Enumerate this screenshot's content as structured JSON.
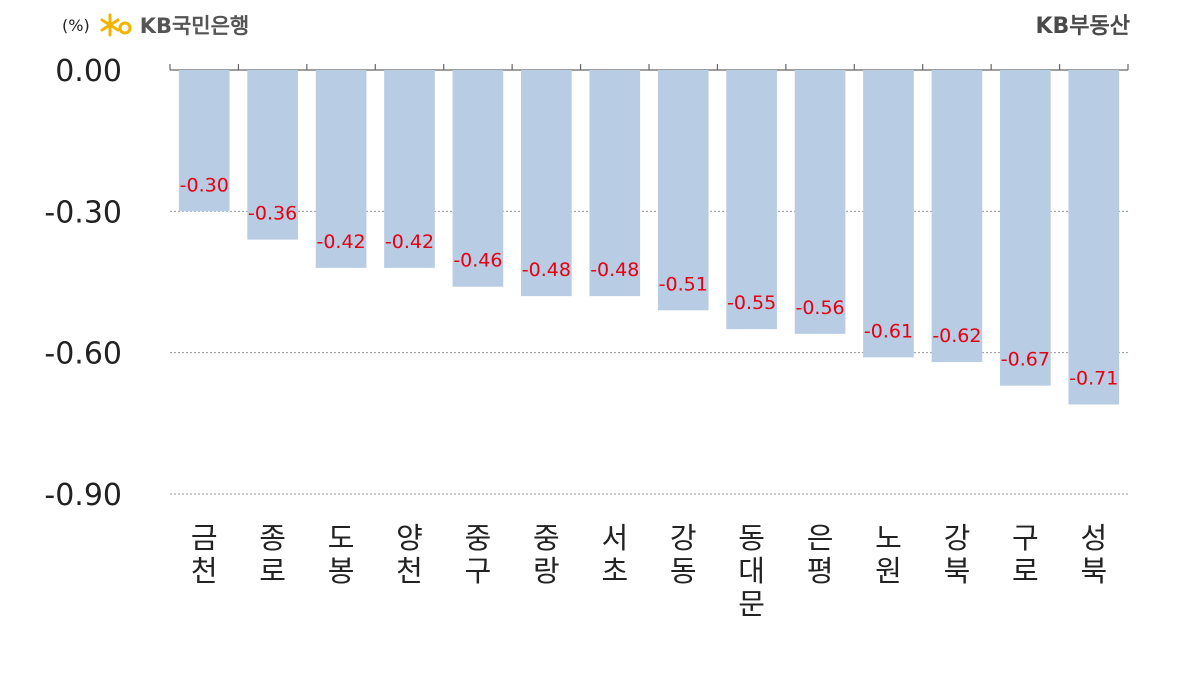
{
  "header": {
    "unit": "(%)",
    "bank_name": "KB국민은행",
    "brand": "KB부동산"
  },
  "colors": {
    "bar": "#b8cce4",
    "label": "#e60012",
    "brand_yellow": "#f2b400"
  },
  "chart_data": {
    "type": "bar",
    "title": "",
    "xlabel": "",
    "ylabel": "(%)",
    "ylim": [
      -0.9,
      0.0
    ],
    "yticks": [
      "0.00",
      "-0.30",
      "-0.60",
      "-0.90"
    ],
    "ytick_values": [
      0.0,
      -0.3,
      -0.6,
      -0.9
    ],
    "grid": true,
    "categories": [
      "금천",
      "종로",
      "도봉",
      "양천",
      "중구",
      "중랑",
      "서초",
      "강동",
      "동대문",
      "은평",
      "노원",
      "강북",
      "구로",
      "성북"
    ],
    "values": [
      -0.3,
      -0.36,
      -0.42,
      -0.42,
      -0.46,
      -0.48,
      -0.48,
      -0.51,
      -0.55,
      -0.56,
      -0.61,
      -0.62,
      -0.67,
      -0.71
    ],
    "data_labels": [
      "-0.30",
      "-0.36",
      "-0.42",
      "-0.42",
      "-0.46",
      "-0.48",
      "-0.48",
      "-0.51",
      "-0.55",
      "-0.56",
      "-0.61",
      "-0.62",
      "-0.67",
      "-0.71"
    ]
  }
}
